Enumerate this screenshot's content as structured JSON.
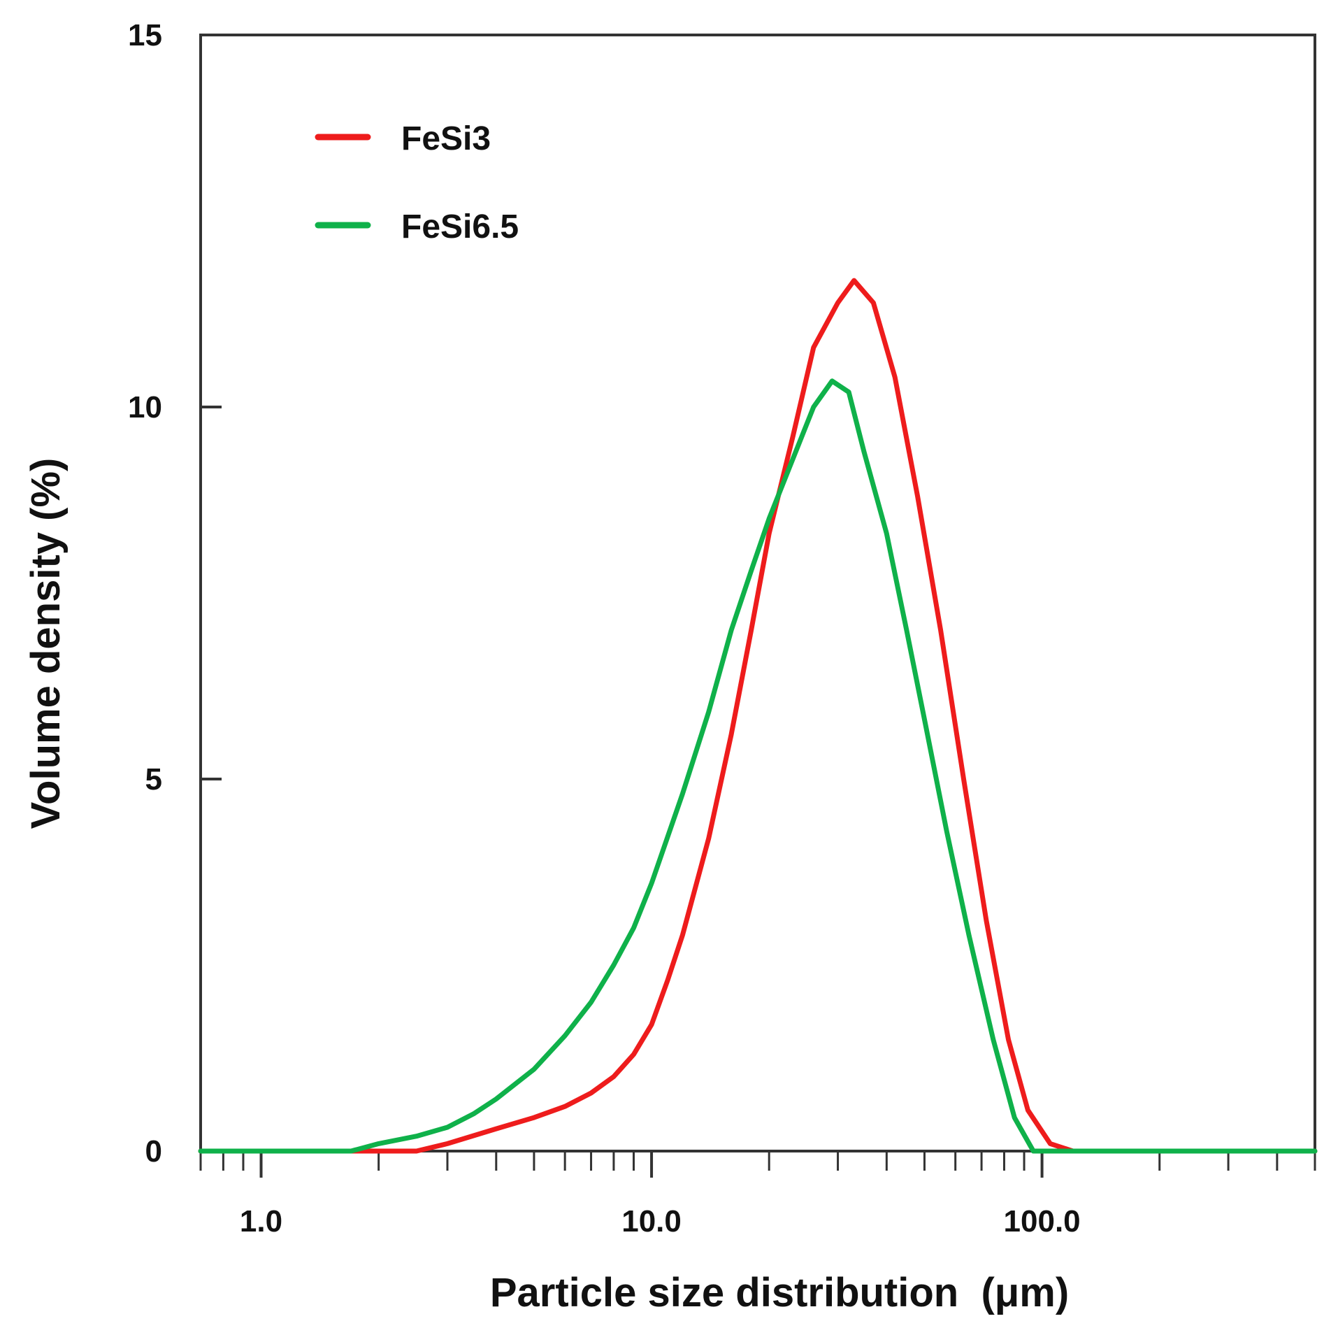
{
  "chart_data": {
    "type": "line",
    "title": "",
    "xlabel": "Particle size distribution  (μm)",
    "ylabel": "Volume density (%)",
    "xscale": "log",
    "xlim": [
      0.7,
      500
    ],
    "ylim": [
      0,
      15
    ],
    "x_tick_labels": [
      {
        "value": 1,
        "label": "1.0"
      },
      {
        "value": 10,
        "label": "10.0"
      },
      {
        "value": 100,
        "label": "100.0"
      }
    ],
    "y_tick_labels": [
      {
        "value": 0,
        "label": "0"
      },
      {
        "value": 5,
        "label": "5"
      },
      {
        "value": 10,
        "label": "10"
      },
      {
        "value": 15,
        "label": "15"
      }
    ],
    "grid": false,
    "legend_position": "top-left",
    "series": [
      {
        "name": "FeSi3",
        "color": "#ee1c1c",
        "x": [
          0.7,
          1.0,
          1.5,
          2.0,
          2.5,
          3.0,
          4.0,
          5.0,
          6.0,
          7.0,
          8.0,
          9.0,
          10.0,
          11.0,
          12.0,
          14.0,
          16.0,
          18.0,
          20.0,
          23.0,
          26.0,
          30.0,
          33.0,
          37.0,
          42.0,
          48.0,
          55.0,
          63.0,
          72.0,
          82.0,
          92.0,
          105.0,
          120.0,
          150.0,
          200.0,
          300.0,
          500.0
        ],
        "values": [
          0,
          0,
          0,
          0,
          0,
          0.1,
          0.3,
          0.45,
          0.6,
          0.78,
          1.0,
          1.3,
          1.7,
          2.3,
          2.9,
          4.2,
          5.6,
          7.0,
          8.3,
          9.6,
          10.8,
          11.4,
          11.7,
          11.4,
          10.4,
          8.8,
          7.0,
          5.0,
          3.1,
          1.5,
          0.55,
          0.1,
          0,
          0,
          0,
          0,
          0
        ]
      },
      {
        "name": "FeSi6.5",
        "color": "#0fb14a",
        "x": [
          0.7,
          1.0,
          1.5,
          1.7,
          2.0,
          2.5,
          3.0,
          3.5,
          4.0,
          5.0,
          6.0,
          7.0,
          8.0,
          9.0,
          10.0,
          12.0,
          14.0,
          16.0,
          18.0,
          20.0,
          23.0,
          26.0,
          29.0,
          32.0,
          35.0,
          40.0,
          45.0,
          50.0,
          57.0,
          65.0,
          75.0,
          85.0,
          95.0,
          110.0,
          150.0,
          200.0,
          300.0,
          500.0
        ],
        "values": [
          0,
          0,
          0,
          0,
          0.1,
          0.2,
          0.32,
          0.5,
          0.7,
          1.1,
          1.55,
          2.0,
          2.5,
          3.0,
          3.6,
          4.8,
          5.9,
          7.0,
          7.8,
          8.5,
          9.3,
          10.0,
          10.35,
          10.2,
          9.4,
          8.3,
          7.0,
          5.8,
          4.3,
          2.9,
          1.5,
          0.45,
          0,
          0,
          0,
          0,
          0,
          0
        ]
      }
    ]
  }
}
